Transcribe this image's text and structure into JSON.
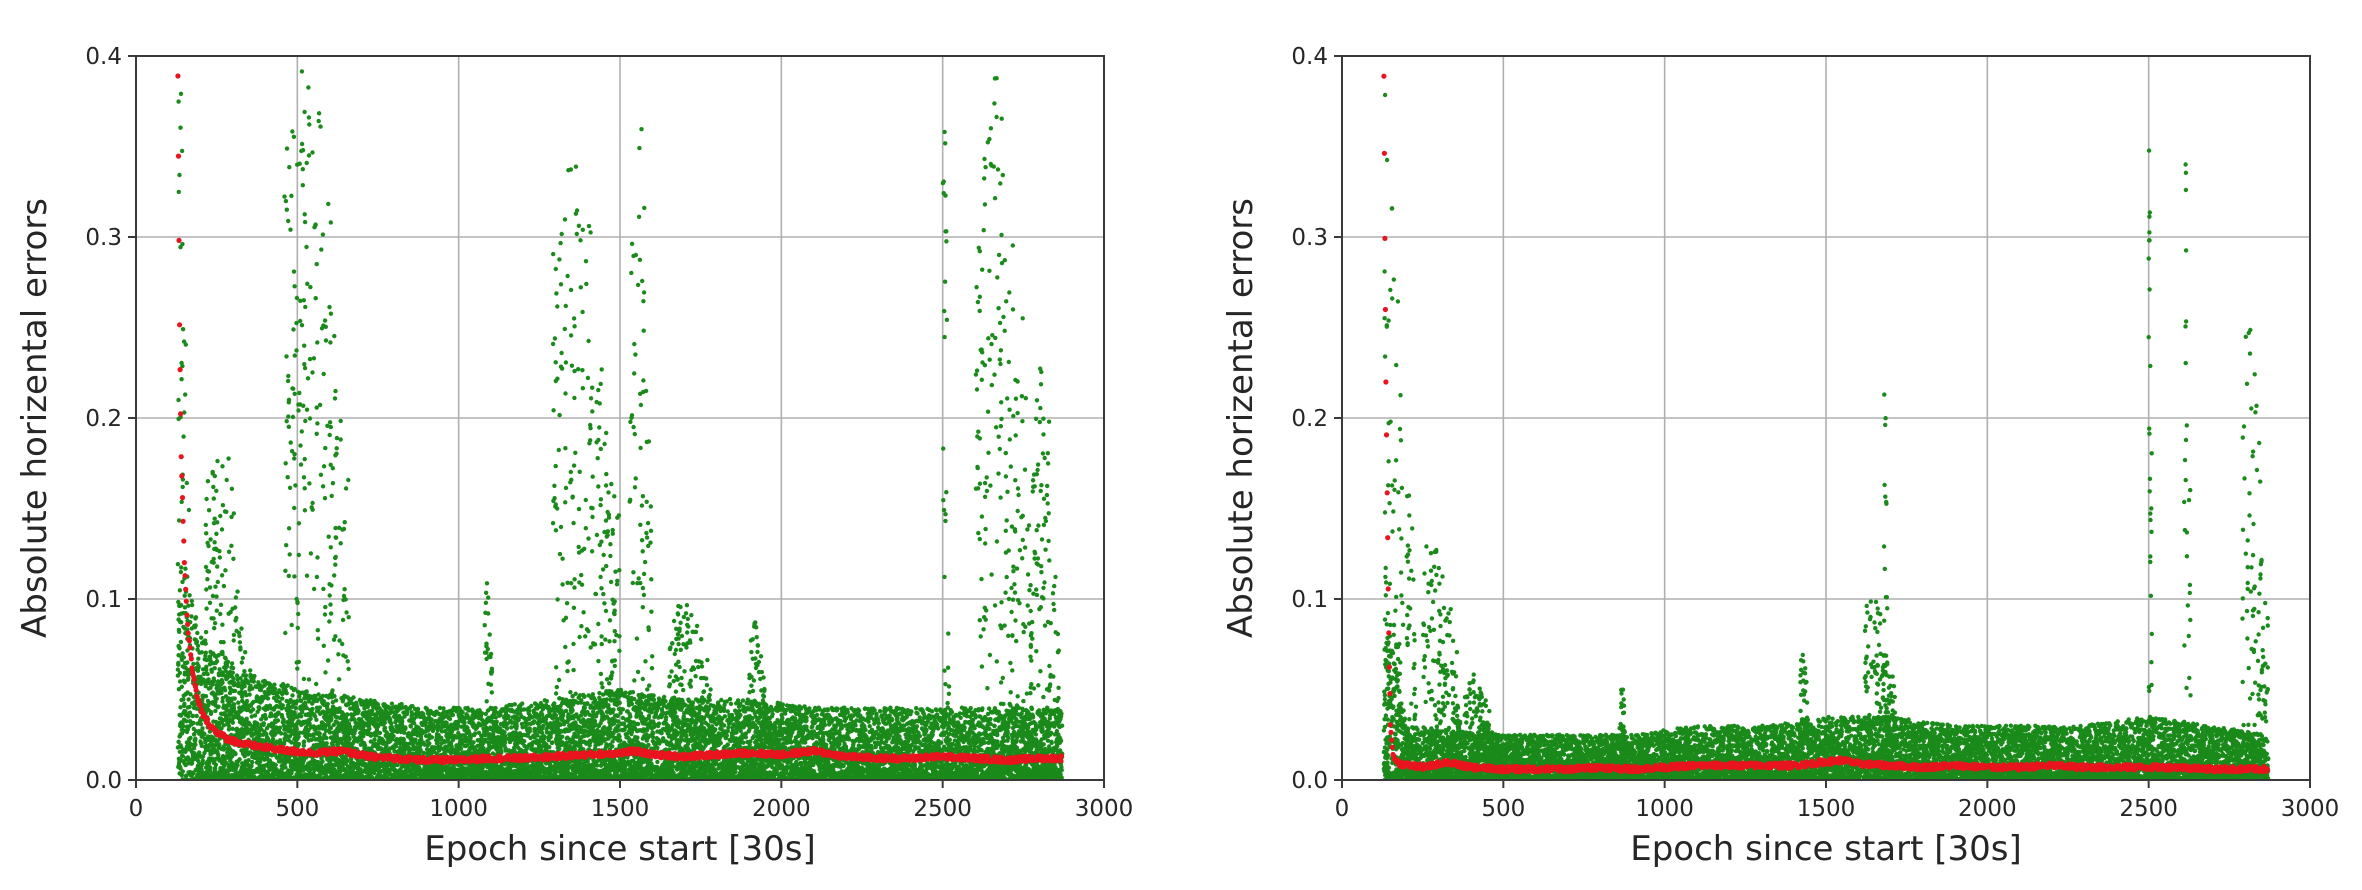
{
  "chart_data": [
    {
      "type": "scatter",
      "title": "",
      "xlabel": "Epoch since start [30s]",
      "ylabel": "Absolute horizental errors",
      "xlim": [
        0,
        3000
      ],
      "ylim": [
        0,
        0.4
      ],
      "xticks": [
        "0",
        "500",
        "1000",
        "1500",
        "2000",
        "2500",
        "3000"
      ],
      "yticks": [
        "0.0",
        "0.1",
        "0.2",
        "0.3",
        "0.4"
      ],
      "grid": true,
      "series": [
        {
          "color": "#1a8a1a",
          "marker": "dot",
          "description_values": {
            "x_range": [
              130,
              2870
            ],
            "baseline_band": [
              [
                150,
                0.0,
                0.12
              ],
              [
                200,
                0.0,
                0.08
              ],
              [
                300,
                0.0,
                0.065
              ],
              [
                500,
                0.0,
                0.05
              ],
              [
                700,
                0.0,
                0.045
              ],
              [
                900,
                0.0,
                0.04
              ],
              [
                1100,
                0.0,
                0.04
              ],
              [
                1300,
                0.0,
                0.045
              ],
              [
                1500,
                0.0,
                0.05
              ],
              [
                1700,
                0.0,
                0.045
              ],
              [
                1900,
                0.0,
                0.045
              ],
              [
                2100,
                0.0,
                0.04
              ],
              [
                2300,
                0.0,
                0.04
              ],
              [
                2500,
                0.0,
                0.04
              ],
              [
                2700,
                0.0,
                0.04
              ],
              [
                2870,
                0.0,
                0.04
              ]
            ],
            "spikes": [
              {
                "x0": 130,
                "x1": 165,
                "ymax": 0.4
              },
              {
                "x0": 215,
                "x1": 345,
                "ymax": 0.19
              },
              {
                "x0": 460,
                "x1": 660,
                "ymax": 0.4
              },
              {
                "x0": 1080,
                "x1": 1110,
                "ymax": 0.11
              },
              {
                "x0": 1290,
                "x1": 1500,
                "ymax": 0.34
              },
              {
                "x0": 1530,
                "x1": 1600,
                "ymax": 0.395
              },
              {
                "x0": 1650,
                "x1": 1800,
                "ymax": 0.1
              },
              {
                "x0": 1900,
                "x1": 1960,
                "ymax": 0.09
              },
              {
                "x0": 2500,
                "x1": 2520,
                "ymax": 0.375
              },
              {
                "x0": 2600,
                "x1": 2780,
                "ymax": 0.395
              },
              {
                "x0": 2780,
                "x1": 2860,
                "ymax": 0.24
              }
            ]
          }
        },
        {
          "color": "#e8141e",
          "marker": "dot",
          "x": [
            130,
            135,
            140,
            150,
            160,
            175,
            190,
            210,
            240,
            280,
            330,
            400,
            480,
            560,
            640,
            720,
            800,
            900,
            1000,
            1100,
            1200,
            1300,
            1400,
            1500,
            1550,
            1600,
            1700,
            1800,
            1900,
            2000,
            2100,
            2200,
            2300,
            2400,
            2500,
            2600,
            2700,
            2800,
            2870
          ],
          "y": [
            0.39,
            0.25,
            0.18,
            0.12,
            0.085,
            0.06,
            0.045,
            0.035,
            0.028,
            0.023,
            0.02,
            0.018,
            0.016,
            0.015,
            0.016,
            0.013,
            0.012,
            0.011,
            0.011,
            0.012,
            0.012,
            0.013,
            0.014,
            0.015,
            0.016,
            0.014,
            0.013,
            0.014,
            0.015,
            0.014,
            0.016,
            0.013,
            0.012,
            0.012,
            0.013,
            0.012,
            0.011,
            0.012,
            0.012
          ]
        }
      ]
    },
    {
      "type": "scatter",
      "title": "",
      "xlabel": "Epoch since start [30s]",
      "ylabel": "Absolute horizental errors",
      "xlim": [
        0,
        3000
      ],
      "ylim": [
        0,
        0.4
      ],
      "xticks": [
        "0",
        "500",
        "1000",
        "1500",
        "2000",
        "2500",
        "3000"
      ],
      "yticks": [
        "0.0",
        "0.1",
        "0.2",
        "0.3",
        "0.4"
      ],
      "grid": true,
      "series": [
        {
          "color": "#1a8a1a",
          "marker": "dot",
          "description_values": {
            "x_range": [
              130,
              2870
            ],
            "baseline_band": [
              [
                150,
                0.0,
                0.08
              ],
              [
                200,
                0.0,
                0.03
              ],
              [
                300,
                0.0,
                0.028
              ],
              [
                500,
                0.0,
                0.025
              ],
              [
                700,
                0.0,
                0.025
              ],
              [
                900,
                0.0,
                0.025
              ],
              [
                1100,
                0.0,
                0.03
              ],
              [
                1300,
                0.0,
                0.03
              ],
              [
                1500,
                0.0,
                0.035
              ],
              [
                1700,
                0.0,
                0.035
              ],
              [
                1900,
                0.0,
                0.03
              ],
              [
                2100,
                0.0,
                0.03
              ],
              [
                2300,
                0.0,
                0.03
              ],
              [
                2500,
                0.0,
                0.035
              ],
              [
                2700,
                0.0,
                0.03
              ],
              [
                2870,
                0.0,
                0.025
              ]
            ],
            "spikes": [
              {
                "x0": 130,
                "x1": 190,
                "ymax": 0.4
              },
              {
                "x0": 200,
                "x1": 230,
                "ymax": 0.2
              },
              {
                "x0": 250,
                "x1": 370,
                "ymax": 0.13
              },
              {
                "x0": 380,
                "x1": 470,
                "ymax": 0.06
              },
              {
                "x0": 860,
                "x1": 880,
                "ymax": 0.055
              },
              {
                "x0": 1420,
                "x1": 1450,
                "ymax": 0.08
              },
              {
                "x0": 1620,
                "x1": 1720,
                "ymax": 0.1
              },
              {
                "x0": 1680,
                "x1": 1690,
                "ymax": 0.23
              },
              {
                "x0": 2500,
                "x1": 2510,
                "ymax": 0.375
              },
              {
                "x0": 2610,
                "x1": 2630,
                "ymax": 0.36
              },
              {
                "x0": 2790,
                "x1": 2870,
                "ymax": 0.25
              }
            ]
          }
        },
        {
          "color": "#e8141e",
          "marker": "dot",
          "x": [
            130,
            133,
            136,
            140,
            145,
            150,
            160,
            180,
            210,
            260,
            320,
            400,
            500,
            600,
            700,
            800,
            900,
            1000,
            1100,
            1200,
            1300,
            1400,
            1500,
            1550,
            1600,
            1700,
            1800,
            1900,
            2000,
            2100,
            2200,
            2300,
            2400,
            2500,
            2600,
            2700,
            2800,
            2870
          ],
          "y": [
            0.39,
            0.3,
            0.22,
            0.16,
            0.08,
            0.03,
            0.012,
            0.009,
            0.008,
            0.007,
            0.01,
            0.007,
            0.006,
            0.006,
            0.006,
            0.007,
            0.006,
            0.007,
            0.008,
            0.008,
            0.008,
            0.008,
            0.01,
            0.011,
            0.009,
            0.008,
            0.007,
            0.008,
            0.007,
            0.007,
            0.008,
            0.007,
            0.007,
            0.007,
            0.007,
            0.006,
            0.006,
            0.006
          ]
        }
      ]
    }
  ]
}
